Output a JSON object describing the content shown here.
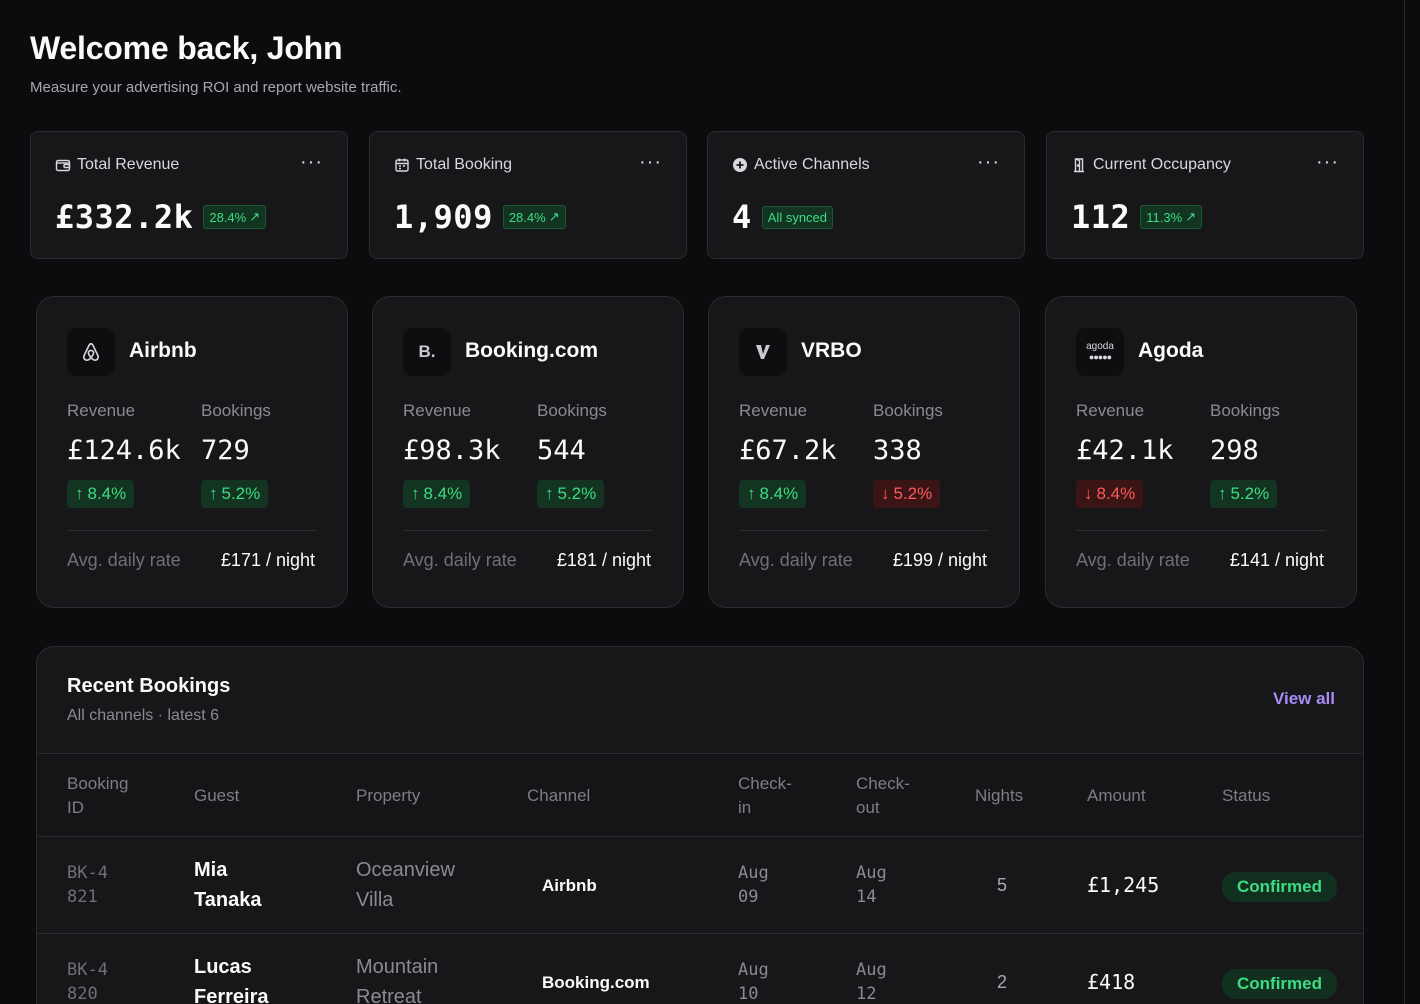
{
  "header": {
    "title": "Welcome back, John",
    "subtitle": "Measure your advertising ROI and report website traffic."
  },
  "stats": [
    {
      "label": "Total Revenue",
      "value": "£332.2k",
      "badge": "28.4%",
      "icon": "wallet-icon"
    },
    {
      "label": "Total Booking",
      "value": "1,909",
      "badge": "28.4%",
      "icon": "calendar-icon"
    },
    {
      "label": "Active Channels",
      "value": "4",
      "badge": "All synced",
      "icon": "plus-circle-icon"
    },
    {
      "label": "Current Occupancy",
      "value": "112",
      "badge": "11.3%",
      "icon": "door-icon"
    }
  ],
  "stat_more_label": "···",
  "channels": [
    {
      "name": "Airbnb",
      "logo": "airbnb-logo",
      "revenue_label": "Revenue",
      "revenue": "£124.6k",
      "revenue_change": "8.4%",
      "revenue_trend": "up",
      "bookings_label": "Bookings",
      "bookings": "729",
      "bookings_change": "5.2%",
      "bookings_trend": "up",
      "rate_label": "Avg. daily rate",
      "rate": "£171 / night"
    },
    {
      "name": "Booking.com",
      "logo": "booking-logo",
      "logo_text": "B.",
      "revenue_label": "Revenue",
      "revenue": "£98.3k",
      "revenue_change": "8.4%",
      "revenue_trend": "up",
      "bookings_label": "Bookings",
      "bookings": "544",
      "bookings_change": "5.2%",
      "bookings_trend": "up",
      "rate_label": "Avg. daily rate",
      "rate": "£181 / night"
    },
    {
      "name": "VRBO",
      "logo": "vrbo-logo",
      "revenue_label": "Revenue",
      "revenue": "£67.2k",
      "revenue_change": "8.4%",
      "revenue_trend": "up",
      "bookings_label": "Bookings",
      "bookings": "338",
      "bookings_change": "5.2%",
      "bookings_trend": "down",
      "rate_label": "Avg. daily rate",
      "rate": "£199 / night"
    },
    {
      "name": "Agoda",
      "logo": "agoda-logo",
      "logo_text": "agoda",
      "revenue_label": "Revenue",
      "revenue": "£42.1k",
      "revenue_change": "8.4%",
      "revenue_trend": "down",
      "bookings_label": "Bookings",
      "bookings": "298",
      "bookings_change": "5.2%",
      "bookings_trend": "up",
      "rate_label": "Avg. daily rate",
      "rate": "£141 / night"
    }
  ],
  "bookings": {
    "title": "Recent Bookings",
    "subtitle": "All channels · latest 6",
    "view_all": "View all",
    "columns": {
      "id_1": "Booking",
      "id_2": "ID",
      "guest": "Guest",
      "property": "Property",
      "channel": "Channel",
      "checkin_1": "Check-",
      "checkin_2": "in",
      "checkout_1": "Check-",
      "checkout_2": "out",
      "nights": "Nights",
      "amount": "Amount",
      "status": "Status"
    },
    "rows": [
      {
        "id_1": "BK-4",
        "id_2": "821",
        "guest_1": "Mia",
        "guest_2": "Tanaka",
        "prop_1": "Oceanview",
        "prop_2": "Villa",
        "channel": "Airbnb",
        "checkin_1": "Aug",
        "checkin_2": "09",
        "checkout_1": "Aug",
        "checkout_2": "14",
        "nights": "5",
        "amount": "£1,245",
        "status": "Confirmed"
      },
      {
        "id_1": "BK-4",
        "id_2": "820",
        "guest_1": "Lucas",
        "guest_2": "Ferreira",
        "prop_1": "Mountain",
        "prop_2": "Retreat",
        "channel": "Booking.com",
        "checkin_1": "Aug",
        "checkin_2": "10",
        "checkout_1": "Aug",
        "checkout_2": "12",
        "nights": "2",
        "amount": "£418",
        "status": "Confirmed"
      }
    ]
  },
  "colors": {
    "accent": "#a98bf5",
    "up": "#3ddc84",
    "down": "#ff5a5a",
    "card": "#17171a",
    "bg": "#0c0c0e"
  }
}
